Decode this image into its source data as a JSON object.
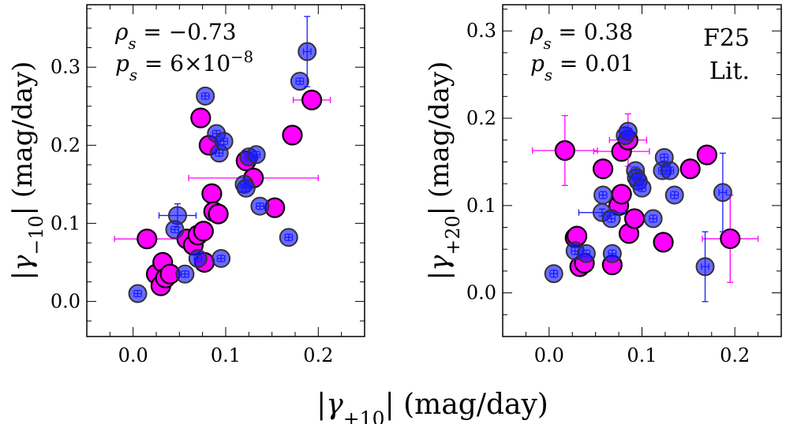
{
  "figure": {
    "xlabel": "|γ+10| (mag/day)",
    "legend": [
      {
        "label": "F25",
        "color": "#ff00ff"
      },
      {
        "label": "Lit.",
        "color": "#1a1aff"
      }
    ]
  },
  "chart_data": [
    {
      "type": "scatter",
      "ylabel": "|γ−10| (mag/day)",
      "xlim": [
        -0.05,
        0.25
      ],
      "ylim": [
        -0.045,
        0.38
      ],
      "xticks": [
        "0.0",
        "0.1",
        "0.2"
      ],
      "yticks": [
        "0.0",
        "0.1",
        "0.2",
        "0.3"
      ],
      "annotations": [
        "ρs = −0.73",
        "ps = 6×10−8"
      ],
      "series": [
        {
          "name": "F25",
          "color": "#ff00ff",
          "points": [
            [
              0.015,
              0.08,
              0.035,
              0.0
            ],
            [
              0.025,
              0.035,
              0,
              0
            ],
            [
              0.03,
              0.02,
              0,
              0
            ],
            [
              0.032,
              0.05,
              0,
              0
            ],
            [
              0.035,
              0.03,
              0,
              0
            ],
            [
              0.04,
              0.035,
              0,
              0
            ],
            [
              0.058,
              0.08,
              0,
              0
            ],
            [
              0.065,
              0.072,
              0,
              0
            ],
            [
              0.07,
              0.085,
              0,
              0
            ],
            [
              0.073,
              0.235,
              0,
              0
            ],
            [
              0.076,
              0.09,
              0,
              0
            ],
            [
              0.077,
              0.05,
              0,
              0
            ],
            [
              0.082,
              0.2,
              0,
              0
            ],
            [
              0.085,
              0.138,
              0,
              0
            ],
            [
              0.087,
              0.115,
              0,
              0
            ],
            [
              0.092,
              0.112,
              0,
              0
            ],
            [
              0.122,
              0.18,
              0,
              0
            ],
            [
              0.13,
              0.158,
              0.07,
              0
            ],
            [
              0.153,
              0.12,
              0,
              0
            ],
            [
              0.172,
              0.213,
              0.01,
              0
            ],
            [
              0.193,
              0.258,
              0.02,
              0
            ]
          ]
        },
        {
          "name": "Lit.",
          "color": "#1a1aff",
          "points": [
            [
              0.005,
              0.01,
              0,
              0
            ],
            [
              0.048,
              0.11,
              0.02,
              0.015
            ],
            [
              0.045,
              0.092,
              0,
              0
            ],
            [
              0.056,
              0.035,
              0,
              0
            ],
            [
              0.07,
              0.055,
              0,
              0
            ],
            [
              0.078,
              0.263,
              0,
              0
            ],
            [
              0.09,
              0.215,
              0,
              0
            ],
            [
              0.093,
              0.19,
              0,
              0
            ],
            [
              0.098,
              0.205,
              0,
              0
            ],
            [
              0.095,
              0.055,
              0,
              0
            ],
            [
              0.12,
              0.15,
              0,
              0
            ],
            [
              0.122,
              0.145,
              0,
              0
            ],
            [
              0.125,
              0.185,
              0,
              0
            ],
            [
              0.133,
              0.188,
              0,
              0
            ],
            [
              0.137,
              0.122,
              0,
              0
            ],
            [
              0.168,
              0.082,
              0,
              0
            ],
            [
              0.18,
              0.282,
              0,
              0
            ],
            [
              0.188,
              0.32,
              0,
              0.045
            ]
          ]
        }
      ]
    },
    {
      "type": "scatter",
      "ylabel": "|γ+20| (mag/day)",
      "xlim": [
        -0.05,
        0.25
      ],
      "ylim": [
        -0.05,
        0.33
      ],
      "xticks": [
        "0.0",
        "0.1",
        "0.2"
      ],
      "yticks": [
        "0.0",
        "0.1",
        "0.2",
        "0.3"
      ],
      "annotations": [
        "ρs = 0.38",
        "ps = 0.01"
      ],
      "series": [
        {
          "name": "F25",
          "color": "#ff00ff",
          "points": [
            [
              0.017,
              0.163,
              0.035,
              0.04
            ],
            [
              0.028,
              0.063,
              0,
              0
            ],
            [
              0.03,
              0.065,
              0,
              0
            ],
            [
              0.033,
              0.03,
              0,
              0
            ],
            [
              0.038,
              0.034,
              0,
              0
            ],
            [
              0.058,
              0.142,
              0,
              0
            ],
            [
              0.068,
              0.032,
              0,
              0
            ],
            [
              0.075,
              0.1,
              0,
              0
            ],
            [
              0.078,
              0.113,
              0,
              0
            ],
            [
              0.078,
              0.162,
              0.03,
              0
            ],
            [
              0.085,
              0.175,
              0.02,
              0.03
            ],
            [
              0.086,
              0.068,
              0,
              0
            ],
            [
              0.092,
              0.085,
              0,
              0
            ],
            [
              0.123,
              0.058,
              0,
              0
            ],
            [
              0.152,
              0.142,
              0,
              0
            ],
            [
              0.17,
              0.158,
              0,
              0
            ],
            [
              0.195,
              0.062,
              0.03,
              0.05
            ]
          ]
        },
        {
          "name": "Lit.",
          "color": "#1a1aff",
          "points": [
            [
              0.005,
              0.022,
              0,
              0
            ],
            [
              0.028,
              0.048,
              0,
              0
            ],
            [
              0.04,
              0.045,
              0,
              0
            ],
            [
              0.057,
              0.092,
              0.025,
              0
            ],
            [
              0.058,
              0.112,
              0,
              0
            ],
            [
              0.067,
              0.085,
              0,
              0
            ],
            [
              0.068,
              0.045,
              0,
              0
            ],
            [
              0.082,
              0.18,
              0,
              0
            ],
            [
              0.085,
              0.185,
              0,
              0
            ],
            [
              0.093,
              0.14,
              0,
              0
            ],
            [
              0.094,
              0.132,
              0,
              0
            ],
            [
              0.096,
              0.128,
              0,
              0
            ],
            [
              0.1,
              0.12,
              0,
              0
            ],
            [
              0.112,
              0.085,
              0,
              0
            ],
            [
              0.122,
              0.14,
              0,
              0
            ],
            [
              0.124,
              0.155,
              0,
              0
            ],
            [
              0.13,
              0.14,
              0,
              0
            ],
            [
              0.135,
              0.112,
              0,
              0
            ],
            [
              0.168,
              0.03,
              0,
              0.04
            ],
            [
              0.187,
              0.115,
              0,
              0.045
            ]
          ]
        }
      ]
    }
  ]
}
